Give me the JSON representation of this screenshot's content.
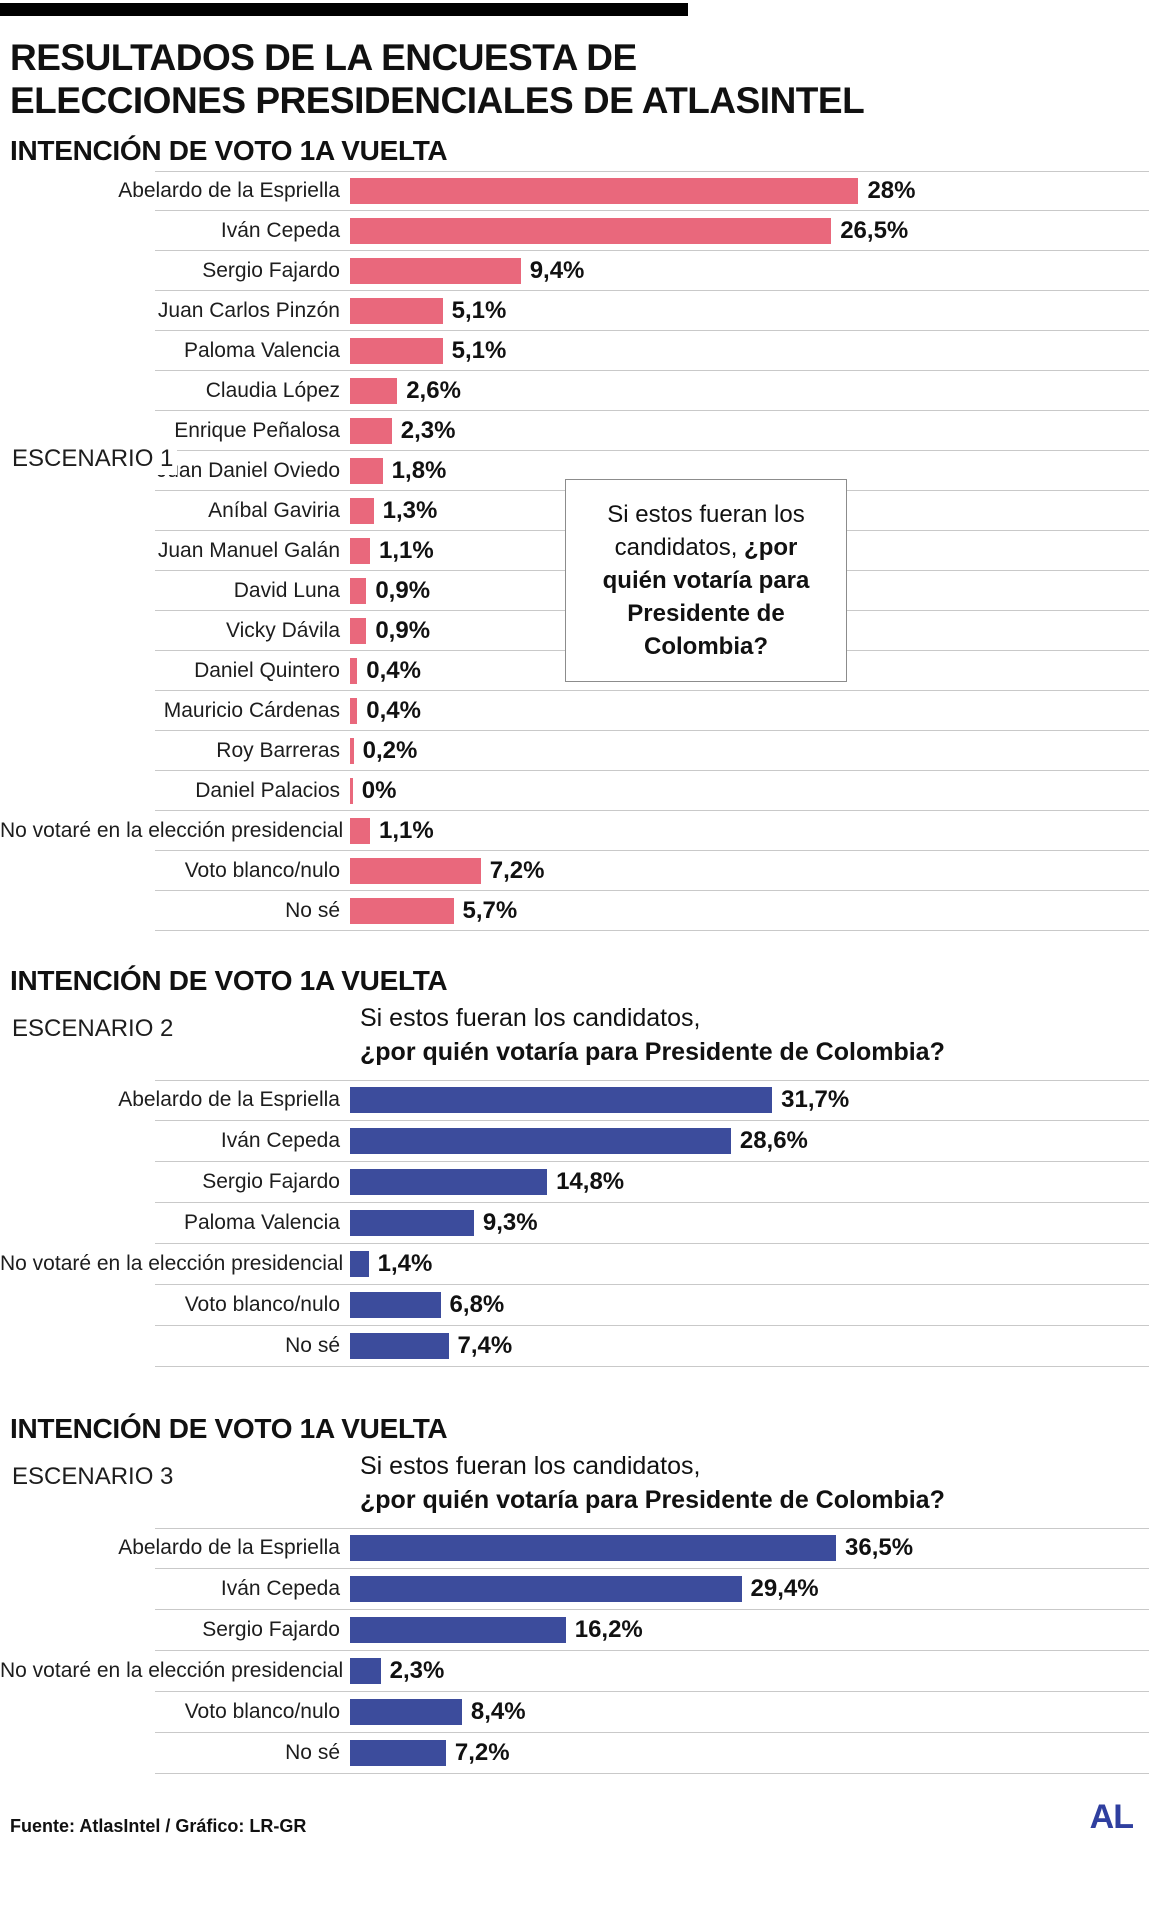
{
  "header": {
    "title_line1": "RESULTADOS DE LA ENCUESTA DE",
    "title_line2": "ELECCIONES PRESIDENCIALES DE ATLASINTEL"
  },
  "question": {
    "normal": "Si estos fueran los candidatos,",
    "bold": "¿por quién votaría para Presidente de Colombia?"
  },
  "colors": {
    "scenario1_bar": "#e9687c",
    "scenario23_bar": "#3c4c9c",
    "logo_blue": "#2f3f9f",
    "separator": "#c9c9c9",
    "top_bar": "#000000"
  },
  "footer": {
    "source": "Fuente: AtlasIntel / Gráfico: LR-GR",
    "logo": "AL"
  },
  "chart_data": [
    {
      "type": "bar",
      "orientation": "horizontal",
      "title": "INTENCIÓN DE VOTO 1A VUELTA",
      "scenario": "ESCENARIO 1",
      "bar_color": "#e9687c",
      "xmax": 44,
      "grid": false,
      "legend": "none",
      "categories": [
        "Abelardo de la Espriella",
        "Iván Cepeda",
        "Sergio Fajardo",
        "Juan Carlos Pinzón",
        "Paloma Valencia",
        "Claudia López",
        "Enrique Peñalosa",
        "Juan Daniel Oviedo",
        "Aníbal Gaviria",
        "Juan Manuel Galán",
        "David Luna",
        "Vicky Dávila",
        "Daniel Quintero",
        "Mauricio Cárdenas",
        "Roy Barreras",
        "Daniel Palacios",
        "No votaré en la elección presidencial",
        "Voto blanco/nulo",
        "No sé"
      ],
      "values": [
        28,
        26.5,
        9.4,
        5.1,
        5.1,
        2.6,
        2.3,
        1.8,
        1.3,
        1.1,
        0.9,
        0.9,
        0.4,
        0.4,
        0.2,
        0,
        1.1,
        7.2,
        5.7
      ],
      "value_labels": [
        "28%",
        "26,5%",
        "9,4%",
        "5,1%",
        "5,1%",
        "2,6%",
        "2,3%",
        "1,8%",
        "1,3%",
        "1,1%",
        "0,9%",
        "0,9%",
        "0,4%",
        "0,4%",
        "0,2%",
        "0%",
        "1,1%",
        "7,2%",
        "5,7%"
      ]
    },
    {
      "type": "bar",
      "orientation": "horizontal",
      "title": "INTENCIÓN DE VOTO 1A VUELTA",
      "scenario": "ESCENARIO 2",
      "bar_color": "#3c4c9c",
      "xmax": 60,
      "grid": false,
      "legend": "none",
      "categories": [
        "Abelardo de la Espriella",
        "Iván Cepeda",
        "Sergio Fajardo",
        "Paloma Valencia",
        "No votaré en la elección presidencial",
        "Voto blanco/nulo",
        "No sé"
      ],
      "values": [
        31.7,
        28.6,
        14.8,
        9.3,
        1.4,
        6.8,
        7.4
      ],
      "value_labels": [
        "31,7%",
        "28,6%",
        "14,8%",
        "9,3%",
        "1,4%",
        "6,8%",
        "7,4%"
      ]
    },
    {
      "type": "bar",
      "orientation": "horizontal",
      "title": "INTENCIÓN DE VOTO 1A VUELTA",
      "scenario": "ESCENARIO 3",
      "bar_color": "#3c4c9c",
      "xmax": 60,
      "grid": false,
      "legend": "none",
      "categories": [
        "Abelardo de la Espriella",
        "Iván Cepeda",
        "Sergio Fajardo",
        "No votaré en la elección presidencial",
        "Voto blanco/nulo",
        "No sé"
      ],
      "values": [
        36.5,
        29.4,
        16.2,
        2.3,
        8.4,
        7.2
      ],
      "value_labels": [
        "36,5%",
        "29,4%",
        "16,2%",
        "2,3%",
        "8,4%",
        "7,2%"
      ]
    }
  ]
}
